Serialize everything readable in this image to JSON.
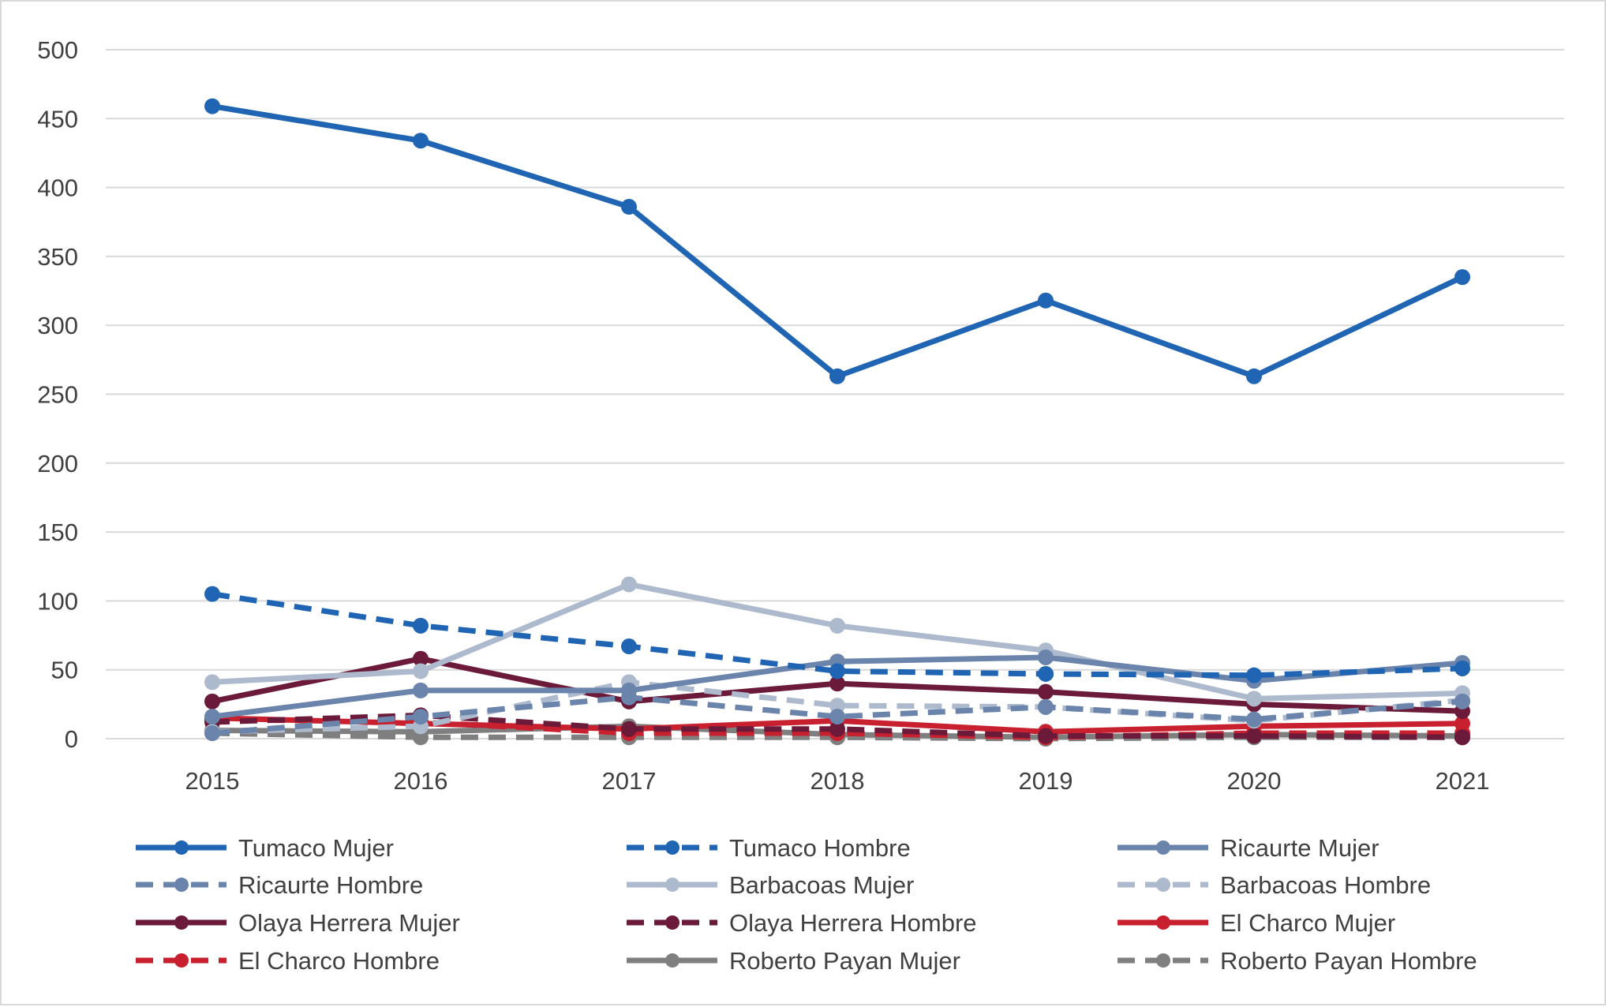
{
  "chart_data": {
    "type": "line",
    "title": "",
    "xlabel": "",
    "ylabel": "",
    "x": [
      "2015",
      "2016",
      "2017",
      "2018",
      "2019",
      "2020",
      "2021"
    ],
    "ylim": [
      0,
      500
    ],
    "yticks": [
      0,
      50,
      100,
      150,
      200,
      250,
      300,
      350,
      400,
      450,
      500
    ],
    "grid": "horizontal",
    "legend_position": "bottom",
    "series": [
      {
        "name": "Tumaco Mujer",
        "values": [
          459,
          434,
          386,
          263,
          318,
          263,
          335
        ],
        "color": "#1f65b3",
        "dash": "solid"
      },
      {
        "name": "Tumaco Hombre",
        "values": [
          105,
          82,
          67,
          49,
          47,
          46,
          51
        ],
        "color": "#1f65b3",
        "dash": "dashed"
      },
      {
        "name": "Ricaurte Mujer",
        "values": [
          16,
          35,
          35,
          56,
          59,
          42,
          55
        ],
        "color": "#6a84ab",
        "dash": "solid"
      },
      {
        "name": "Ricaurte Hombre",
        "values": [
          4,
          16,
          30,
          16,
          23,
          14,
          27
        ],
        "color": "#6a84ab",
        "dash": "dashed"
      },
      {
        "name": "Barbacoas Mujer",
        "values": [
          41,
          49,
          112,
          82,
          64,
          29,
          33
        ],
        "color": "#adb9cc",
        "dash": "solid"
      },
      {
        "name": "Barbacoas Hombre",
        "values": [
          5,
          9,
          41,
          24,
          23,
          13,
          28
        ],
        "color": "#adb9cc",
        "dash": "dashed"
      },
      {
        "name": "Olaya Herrera Mujer",
        "values": [
          27,
          58,
          27,
          40,
          34,
          25,
          20
        ],
        "color": "#6b1a3a",
        "dash": "solid"
      },
      {
        "name": "Olaya Herrera Hombre",
        "values": [
          12,
          17,
          7,
          7,
          2,
          2,
          1
        ],
        "color": "#6b1a3a",
        "dash": "dashed"
      },
      {
        "name": "El Charco Mujer",
        "values": [
          15,
          11,
          7,
          13,
          5,
          9,
          11
        ],
        "color": "#c8202f",
        "dash": "solid"
      },
      {
        "name": "El Charco Hombre",
        "values": [
          14,
          12,
          4,
          4,
          1,
          4,
          4
        ],
        "color": "#c8202f",
        "dash": "dashed"
      },
      {
        "name": "Roberto Payan Mujer",
        "values": [
          6,
          5,
          9,
          3,
          1,
          3,
          2
        ],
        "color": "#7f7f7f",
        "dash": "solid"
      },
      {
        "name": "Roberto Payan Hombre",
        "values": [
          4,
          1,
          1,
          1,
          0,
          1,
          1
        ],
        "color": "#7f7f7f",
        "dash": "dashed"
      }
    ]
  }
}
